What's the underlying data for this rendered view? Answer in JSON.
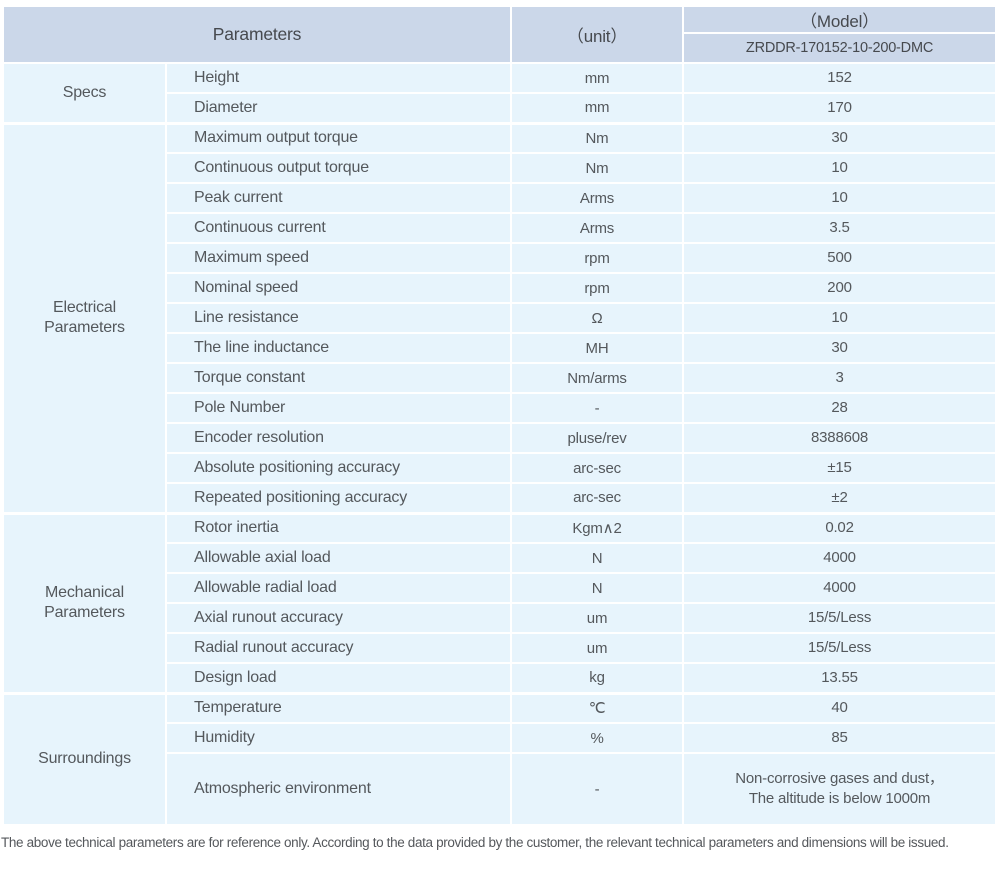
{
  "header": {
    "parameters_label": "Parameters",
    "unit_label": "（unit）",
    "model_label": "（Model）",
    "model_value": "ZRDDR-170152-10-200-DMC"
  },
  "groups": [
    {
      "label": "Specs",
      "rows": [
        {
          "name": "Height",
          "unit": "mm",
          "value": "152"
        },
        {
          "name": "Diameter",
          "unit": "mm",
          "value": "170"
        }
      ]
    },
    {
      "label": "Electrical\nParameters",
      "rows": [
        {
          "name": "Maximum output torque",
          "unit": "Nm",
          "value": "30"
        },
        {
          "name": "Continuous output torque",
          "unit": "Nm",
          "value": "10"
        },
        {
          "name": "Peak current",
          "unit": "Arms",
          "value": "10"
        },
        {
          "name": "Continuous current",
          "unit": "Arms",
          "value": "3.5"
        },
        {
          "name": "Maximum speed",
          "unit": "rpm",
          "value": "500"
        },
        {
          "name": "Nominal speed",
          "unit": "rpm",
          "value": "200"
        },
        {
          "name": "Line resistance",
          "unit": "Ω",
          "value": "10"
        },
        {
          "name": "The line inductance",
          "unit": "MH",
          "value": "30"
        },
        {
          "name": "Torque constant",
          "unit": "Nm/arms",
          "value": "3"
        },
        {
          "name": "Pole Number",
          "unit": "-",
          "value": "28"
        },
        {
          "name": "Encoder resolution",
          "unit": "pluse/rev",
          "value": "8388608"
        },
        {
          "name": "Absolute positioning accuracy",
          "unit": "arc-sec",
          "value": "±15"
        },
        {
          "name": "Repeated positioning accuracy",
          "unit": "arc-sec",
          "value": "±2"
        }
      ]
    },
    {
      "label": "Mechanical\nParameters",
      "rows": [
        {
          "name": "Rotor inertia",
          "unit": "Kgm∧2",
          "value": "0.02"
        },
        {
          "name": "Allowable axial load",
          "unit": "N",
          "value": "4000"
        },
        {
          "name": "Allowable radial load",
          "unit": "N",
          "value": "4000"
        },
        {
          "name": "Axial runout accuracy",
          "unit": "um",
          "value": "15/5/Less"
        },
        {
          "name": "Radial runout accuracy",
          "unit": "um",
          "value": "15/5/Less"
        },
        {
          "name": "Design load",
          "unit": "kg",
          "value": "13.55"
        }
      ]
    },
    {
      "label": "Surroundings",
      "rows": [
        {
          "name": "Temperature",
          "unit": "℃",
          "value": "40"
        },
        {
          "name": "Humidity",
          "unit": "%",
          "value": "85"
        },
        {
          "name": "Atmospheric environment",
          "unit": "-",
          "value": "Non-corrosive gases and dust，\nThe altitude is below 1000m"
        }
      ]
    }
  ],
  "footer": {
    "note": "The above technical parameters are for reference only. According to the data provided by the customer, the relevant technical parameters and dimensions will be issued."
  },
  "colors": {
    "header_bg": "#cbd7e9",
    "row_bg": "#e7f4fc",
    "header_text": "#46494e",
    "body_text": "#54585c"
  }
}
